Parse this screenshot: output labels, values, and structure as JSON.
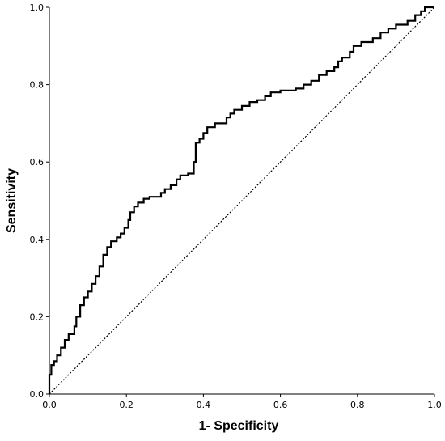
{
  "chart_data": {
    "type": "line",
    "title": "",
    "xlabel": "1- Specificity",
    "ylabel": "Sensitivity",
    "xlim": [
      0.0,
      1.0
    ],
    "ylim": [
      0.0,
      1.0
    ],
    "x_ticks": [
      "0.0",
      "0.2",
      "0.4",
      "0.6",
      "0.8",
      "1.0"
    ],
    "y_ticks": [
      "0.0",
      "0.2",
      "0.4",
      "0.6",
      "0.8",
      "1.0"
    ],
    "grid": false,
    "legend": "none",
    "series": [
      {
        "style": "solid-step",
        "color": "#000000",
        "points": [
          [
            0.0,
            0.0
          ],
          [
            0.0,
            0.05
          ],
          [
            0.005,
            0.05
          ],
          [
            0.005,
            0.075
          ],
          [
            0.012,
            0.075
          ],
          [
            0.012,
            0.085
          ],
          [
            0.02,
            0.085
          ],
          [
            0.02,
            0.1
          ],
          [
            0.03,
            0.1
          ],
          [
            0.03,
            0.12
          ],
          [
            0.04,
            0.12
          ],
          [
            0.04,
            0.14
          ],
          [
            0.05,
            0.14
          ],
          [
            0.05,
            0.155
          ],
          [
            0.065,
            0.155
          ],
          [
            0.065,
            0.175
          ],
          [
            0.07,
            0.175
          ],
          [
            0.07,
            0.2
          ],
          [
            0.08,
            0.2
          ],
          [
            0.08,
            0.23
          ],
          [
            0.09,
            0.23
          ],
          [
            0.09,
            0.25
          ],
          [
            0.1,
            0.25
          ],
          [
            0.1,
            0.265
          ],
          [
            0.11,
            0.265
          ],
          [
            0.11,
            0.285
          ],
          [
            0.12,
            0.285
          ],
          [
            0.12,
            0.305
          ],
          [
            0.13,
            0.305
          ],
          [
            0.13,
            0.33
          ],
          [
            0.14,
            0.33
          ],
          [
            0.14,
            0.36
          ],
          [
            0.15,
            0.36
          ],
          [
            0.15,
            0.38
          ],
          [
            0.16,
            0.38
          ],
          [
            0.16,
            0.395
          ],
          [
            0.175,
            0.395
          ],
          [
            0.175,
            0.405
          ],
          [
            0.185,
            0.405
          ],
          [
            0.185,
            0.415
          ],
          [
            0.195,
            0.415
          ],
          [
            0.195,
            0.43
          ],
          [
            0.205,
            0.43
          ],
          [
            0.205,
            0.45
          ],
          [
            0.21,
            0.45
          ],
          [
            0.21,
            0.47
          ],
          [
            0.22,
            0.47
          ],
          [
            0.22,
            0.485
          ],
          [
            0.23,
            0.485
          ],
          [
            0.23,
            0.495
          ],
          [
            0.245,
            0.495
          ],
          [
            0.245,
            0.505
          ],
          [
            0.26,
            0.505
          ],
          [
            0.26,
            0.51
          ],
          [
            0.29,
            0.51
          ],
          [
            0.29,
            0.52
          ],
          [
            0.3,
            0.52
          ],
          [
            0.3,
            0.53
          ],
          [
            0.315,
            0.53
          ],
          [
            0.315,
            0.54
          ],
          [
            0.33,
            0.54
          ],
          [
            0.33,
            0.555
          ],
          [
            0.34,
            0.555
          ],
          [
            0.34,
            0.565
          ],
          [
            0.36,
            0.565
          ],
          [
            0.36,
            0.57
          ],
          [
            0.375,
            0.57
          ],
          [
            0.375,
            0.6
          ],
          [
            0.38,
            0.6
          ],
          [
            0.38,
            0.65
          ],
          [
            0.39,
            0.65
          ],
          [
            0.39,
            0.66
          ],
          [
            0.4,
            0.66
          ],
          [
            0.4,
            0.675
          ],
          [
            0.41,
            0.675
          ],
          [
            0.41,
            0.69
          ],
          [
            0.43,
            0.69
          ],
          [
            0.43,
            0.7
          ],
          [
            0.46,
            0.7
          ],
          [
            0.46,
            0.715
          ],
          [
            0.47,
            0.715
          ],
          [
            0.47,
            0.725
          ],
          [
            0.48,
            0.725
          ],
          [
            0.48,
            0.735
          ],
          [
            0.5,
            0.735
          ],
          [
            0.5,
            0.745
          ],
          [
            0.52,
            0.745
          ],
          [
            0.52,
            0.755
          ],
          [
            0.54,
            0.755
          ],
          [
            0.54,
            0.76
          ],
          [
            0.56,
            0.76
          ],
          [
            0.56,
            0.77
          ],
          [
            0.575,
            0.77
          ],
          [
            0.575,
            0.78
          ],
          [
            0.6,
            0.78
          ],
          [
            0.6,
            0.785
          ],
          [
            0.64,
            0.785
          ],
          [
            0.64,
            0.79
          ],
          [
            0.66,
            0.79
          ],
          [
            0.66,
            0.8
          ],
          [
            0.68,
            0.8
          ],
          [
            0.68,
            0.81
          ],
          [
            0.7,
            0.81
          ],
          [
            0.7,
            0.825
          ],
          [
            0.72,
            0.825
          ],
          [
            0.72,
            0.835
          ],
          [
            0.74,
            0.835
          ],
          [
            0.74,
            0.845
          ],
          [
            0.75,
            0.845
          ],
          [
            0.75,
            0.86
          ],
          [
            0.76,
            0.86
          ],
          [
            0.76,
            0.87
          ],
          [
            0.78,
            0.87
          ],
          [
            0.78,
            0.885
          ],
          [
            0.79,
            0.885
          ],
          [
            0.79,
            0.9
          ],
          [
            0.81,
            0.9
          ],
          [
            0.81,
            0.91
          ],
          [
            0.84,
            0.91
          ],
          [
            0.84,
            0.92
          ],
          [
            0.86,
            0.92
          ],
          [
            0.86,
            0.935
          ],
          [
            0.88,
            0.935
          ],
          [
            0.88,
            0.945
          ],
          [
            0.9,
            0.945
          ],
          [
            0.9,
            0.955
          ],
          [
            0.93,
            0.955
          ],
          [
            0.93,
            0.965
          ],
          [
            0.95,
            0.965
          ],
          [
            0.95,
            0.98
          ],
          [
            0.965,
            0.98
          ],
          [
            0.965,
            0.99
          ],
          [
            0.975,
            0.99
          ],
          [
            0.975,
            1.0
          ],
          [
            1.0,
            1.0
          ]
        ]
      },
      {
        "style": "dotted-reference",
        "color": "#000000",
        "points": [
          [
            0.0,
            0.0
          ],
          [
            1.0,
            1.0
          ]
        ]
      }
    ]
  }
}
